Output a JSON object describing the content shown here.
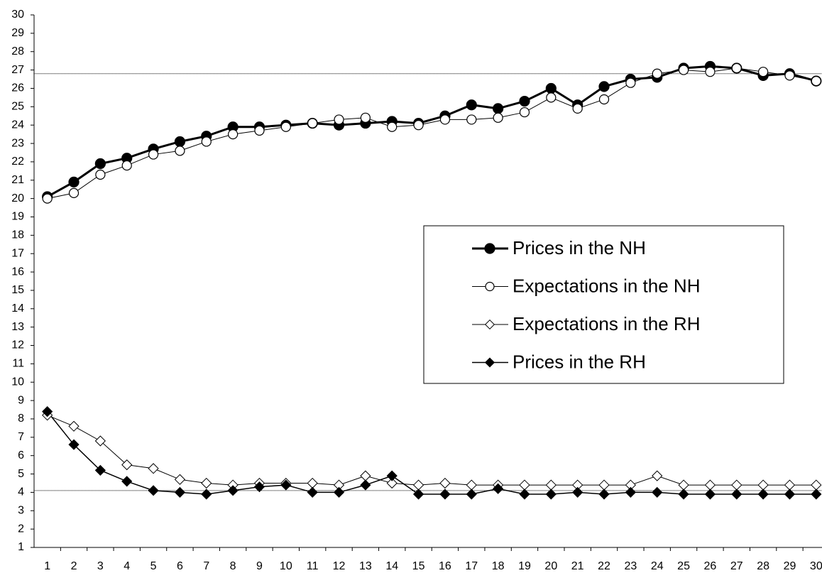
{
  "chart_data": {
    "type": "line",
    "categories": [
      "1",
      "2",
      "3",
      "4",
      "5",
      "6",
      "7",
      "8",
      "9",
      "10",
      "11",
      "12",
      "13",
      "14",
      "15",
      "16",
      "17",
      "18",
      "19",
      "20",
      "21",
      "22",
      "23",
      "24",
      "25",
      "26",
      "27",
      "28",
      "29",
      "30"
    ],
    "series": [
      {
        "name": "Prices in the NH",
        "color": "#000000",
        "marker": "circle",
        "filled": true,
        "line_width": 3,
        "values": [
          20.1,
          20.9,
          21.9,
          22.2,
          22.7,
          23.1,
          23.4,
          23.9,
          23.9,
          24.0,
          24.1,
          24.0,
          24.1,
          24.2,
          24.1,
          24.5,
          25.1,
          24.9,
          25.3,
          26.0,
          25.1,
          26.1,
          26.5,
          26.6,
          27.1,
          27.2,
          27.1,
          26.7,
          26.8,
          26.4
        ]
      },
      {
        "name": "Expectations in the NH",
        "color": "#000000",
        "marker": "circle",
        "filled": false,
        "line_width": 1,
        "values": [
          20.0,
          20.3,
          21.3,
          21.8,
          22.4,
          22.6,
          23.1,
          23.5,
          23.7,
          23.9,
          24.1,
          24.3,
          24.4,
          23.9,
          24.0,
          24.3,
          24.3,
          24.4,
          24.7,
          25.5,
          24.9,
          25.4,
          26.3,
          26.8,
          27.0,
          26.9,
          27.1,
          26.9,
          26.7,
          26.4
        ]
      },
      {
        "name": "Expectations in the RH",
        "color": "#000000",
        "marker": "diamond",
        "filled": false,
        "line_width": 1,
        "values": [
          8.2,
          7.6,
          6.8,
          5.5,
          5.3,
          4.7,
          4.5,
          4.4,
          4.5,
          4.5,
          4.5,
          4.4,
          4.9,
          4.5,
          4.4,
          4.5,
          4.4,
          4.4,
          4.4,
          4.4,
          4.4,
          4.4,
          4.4,
          4.9,
          4.4,
          4.4,
          4.4,
          4.4,
          4.4,
          4.4
        ]
      },
      {
        "name": "Prices in the RH",
        "color": "#000000",
        "marker": "diamond",
        "filled": true,
        "line_width": 1.5,
        "values": [
          8.4,
          6.6,
          5.2,
          4.6,
          4.1,
          4.0,
          3.9,
          4.1,
          4.3,
          4.4,
          4.0,
          4.0,
          4.4,
          4.9,
          3.9,
          3.9,
          3.9,
          4.2,
          3.9,
          3.9,
          4.0,
          3.9,
          4.0,
          4.0,
          3.9,
          3.9,
          3.9,
          3.9,
          3.9,
          3.9
        ]
      }
    ],
    "hlines": [
      26.8,
      4.1
    ],
    "ylim": [
      1,
      30
    ],
    "yticks": [
      1,
      2,
      3,
      4,
      5,
      6,
      7,
      8,
      9,
      10,
      11,
      12,
      13,
      14,
      15,
      16,
      17,
      18,
      19,
      20,
      21,
      22,
      23,
      24,
      25,
      26,
      27,
      28,
      29,
      30
    ],
    "grid": false,
    "legend": "right"
  }
}
